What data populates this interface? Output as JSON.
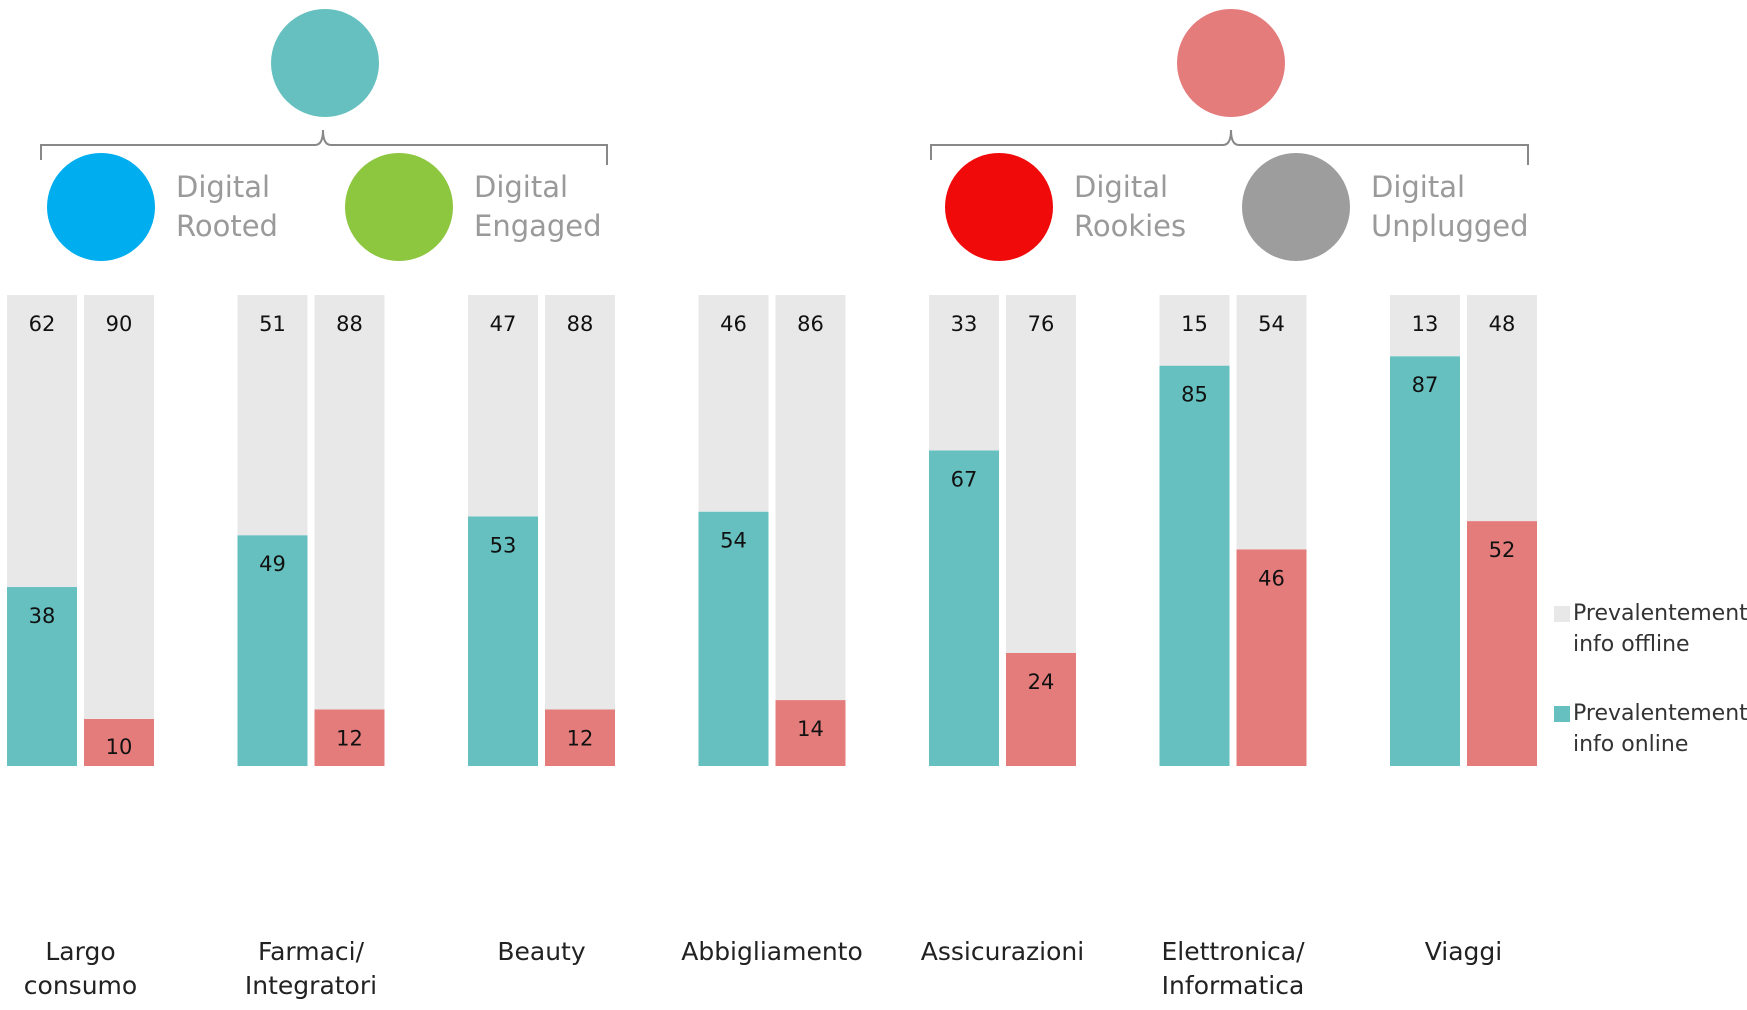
{
  "chart_data": {
    "type": "stacked_bar",
    "categories": [
      "Largo consumo",
      "Farmaci/ Integratori",
      "Beauty",
      "Abbigliamento",
      "Assicurazioni",
      "Elettronica/ Informatica",
      "Viaggi"
    ],
    "ylim": [
      0,
      100
    ],
    "groups": [
      {
        "color": "#66c0c0",
        "members": [
          {
            "name": "Digital Rooted",
            "color": "#00adef"
          },
          {
            "name": "Digital Engaged",
            "color": "#8dc63f"
          }
        ],
        "online": [
          38,
          49,
          53,
          54,
          67,
          85,
          87
        ],
        "offline": [
          62,
          51,
          47,
          46,
          33,
          15,
          13
        ]
      },
      {
        "color": "#e57c7c",
        "members": [
          {
            "name": "Digital Rookies",
            "color": "#f00a0a"
          },
          {
            "name": "Digital Unplugged",
            "color": "#9d9d9d"
          }
        ],
        "online": [
          10,
          12,
          12,
          14,
          24,
          46,
          52
        ],
        "offline": [
          90,
          88,
          88,
          86,
          76,
          54,
          48
        ]
      }
    ],
    "offline_color": "#e8e8e8",
    "legend": [
      {
        "label": "Prevalentemente info offline",
        "color": "#e8e8e8"
      },
      {
        "label": "Prevalentemente info online",
        "color": "#66c0c0"
      }
    ]
  }
}
